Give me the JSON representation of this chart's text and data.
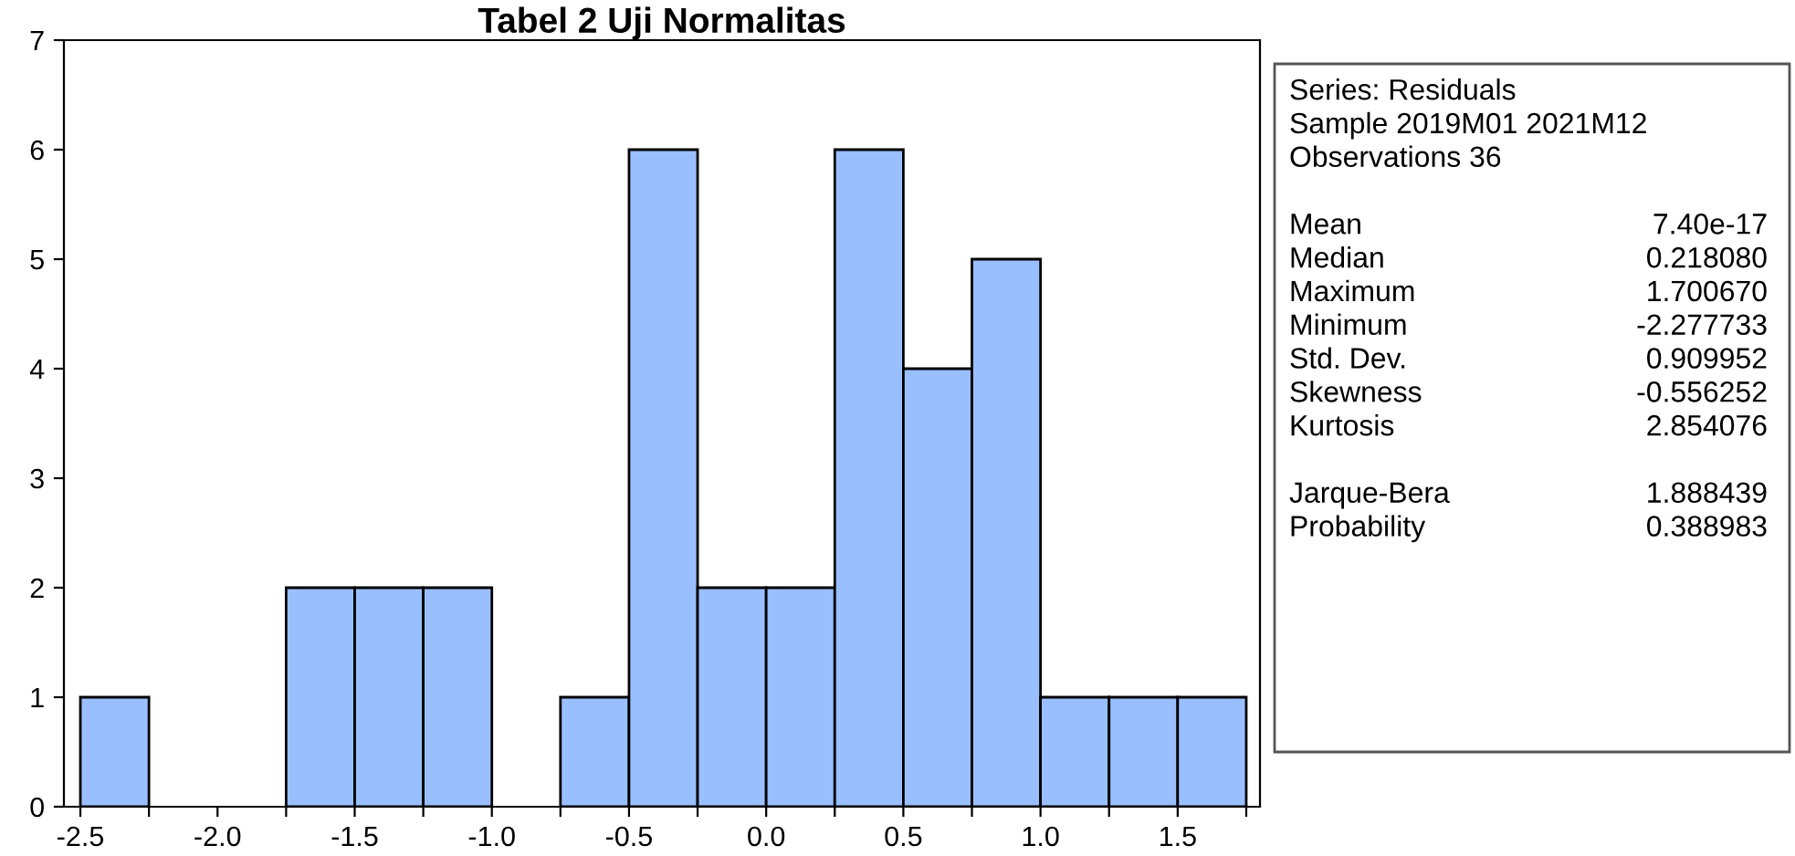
{
  "chart_data": {
    "type": "histogram",
    "title": "Tabel 2 Uji Normalitas",
    "bins": [
      -2.5,
      -2.25,
      -2.0,
      -1.75,
      -1.5,
      -1.25,
      -1.0,
      -0.75,
      -0.5,
      -0.25,
      0.0,
      0.25,
      0.5,
      0.75,
      1.0,
      1.25,
      1.5,
      1.75
    ],
    "values": [
      1,
      0,
      0,
      2,
      2,
      2,
      0,
      1,
      6,
      2,
      2,
      6,
      4,
      5,
      1,
      1,
      1
    ],
    "color": "#99bfff",
    "xlim": [
      -2.56,
      1.8
    ],
    "ylim": [
      0,
      7
    ],
    "xticks": [
      {
        "value": -2.5,
        "label": "-2.5"
      },
      {
        "value": -2.25,
        "label": null
      },
      {
        "value": -2.0,
        "label": "-2.0"
      },
      {
        "value": -1.75,
        "label": null
      },
      {
        "value": -1.5,
        "label": "-1.5"
      },
      {
        "value": -1.25,
        "label": null
      },
      {
        "value": -1.0,
        "label": "-1.0"
      },
      {
        "value": -0.75,
        "label": null
      },
      {
        "value": -0.5,
        "label": "-0.5"
      },
      {
        "value": -0.25,
        "label": null
      },
      {
        "value": 0.0,
        "label": "0.0"
      },
      {
        "value": 0.25,
        "label": null
      },
      {
        "value": 0.5,
        "label": "0.5"
      },
      {
        "value": 0.75,
        "label": null
      },
      {
        "value": 1.0,
        "label": "1.0"
      },
      {
        "value": 1.25,
        "label": null
      },
      {
        "value": 1.5,
        "label": "1.5"
      },
      {
        "value": 1.75,
        "label": null
      }
    ],
    "yticks": [
      0,
      1,
      2,
      3,
      4,
      5,
      6,
      7
    ],
    "grid": false,
    "annotations": [
      "Series: Residuals\nSample 2019M01 2021M12\nObservations 36",
      "Mean\t7.40e-17\nMedian\t0.218080\nMaximum\t1.700670\nMinimum\t-2.277733\nStd. Dev.\t0.909952\nSkewness\t-0.556252\nKurtosis\t2.854076",
      "Jarque-Bera\t1.888439\nProbability\t0.388983"
    ]
  }
}
